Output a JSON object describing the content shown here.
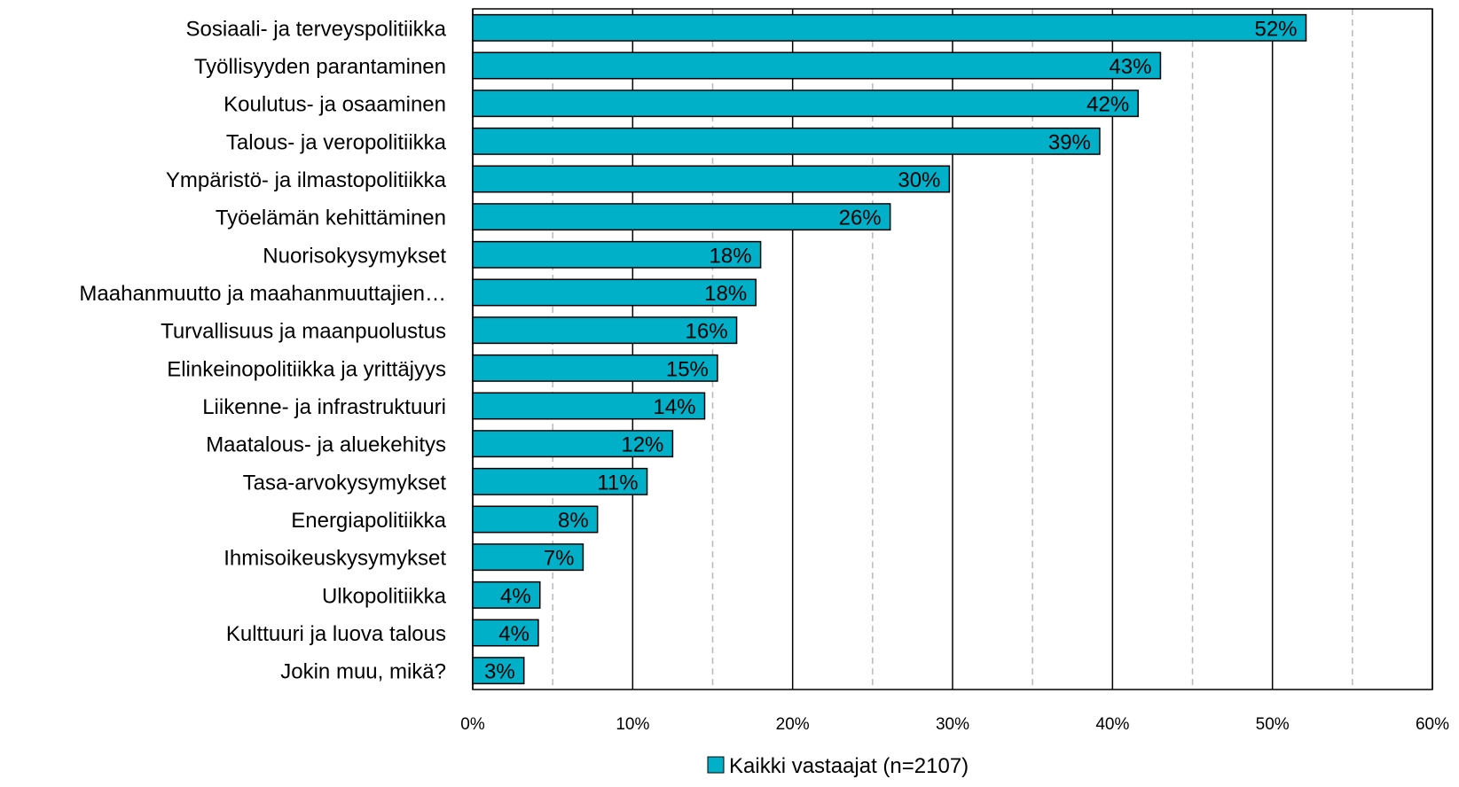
{
  "chart_data": {
    "type": "bar",
    "orientation": "horizontal",
    "categories": [
      "Sosiaali- ja terveyspolitiikka",
      "Työllisyyden parantaminen",
      "Koulutus- ja osaaminen",
      "Talous- ja veropolitiikka",
      "Ympäristö- ja ilmastopolitiikka",
      "Työelämän kehittäminen",
      "Nuorisokysymykset",
      "Maahanmuutto ja maahanmuuttajien…",
      "Turvallisuus ja maanpuolustus",
      "Elinkeinopolitiikka ja yrittäjyys",
      "Liikenne- ja infrastruktuuri",
      "Maatalous- ja aluekehitys",
      "Tasa-arvokysymykset",
      "Energiapolitiikka",
      "Ihmisoikeuskysymykset",
      "Ulkopolitiikka",
      "Kulttuuri ja luova talous",
      "Jokin muu, mikä?"
    ],
    "series": [
      {
        "name": "Kaikki vastaajat (n=2107)",
        "values": [
          52,
          43,
          42,
          39,
          30,
          26,
          18,
          18,
          16,
          15,
          14,
          12,
          11,
          8,
          7,
          4,
          4,
          3
        ],
        "labels": [
          "52%",
          "43%",
          "42%",
          "39%",
          "30%",
          "26%",
          "18%",
          "18%",
          "16%",
          "15%",
          "14%",
          "12%",
          "11%",
          "8%",
          "7%",
          "4%",
          "4%",
          "3%"
        ],
        "bar_values": [
          52.1,
          43.0,
          41.6,
          39.2,
          29.8,
          26.1,
          18.0,
          17.7,
          16.5,
          15.3,
          14.5,
          12.5,
          10.9,
          7.8,
          6.9,
          4.2,
          4.1,
          3.2
        ]
      }
    ],
    "xlim": [
      0,
      60
    ],
    "ticks": [
      "0%",
      "10%",
      "20%",
      "30%",
      "40%",
      "50%",
      "60%"
    ],
    "tick_values": [
      0,
      10,
      20,
      30,
      40,
      50,
      60
    ],
    "minor_gridlines": [
      5,
      15,
      25,
      35,
      45,
      55
    ],
    "grid": true,
    "legend_position": "bottom-center",
    "colors": {
      "bar": "#00b0c8",
      "bar_edge": "#000000",
      "major_grid": "#000000",
      "minor_grid": "#b8b8b8"
    }
  }
}
